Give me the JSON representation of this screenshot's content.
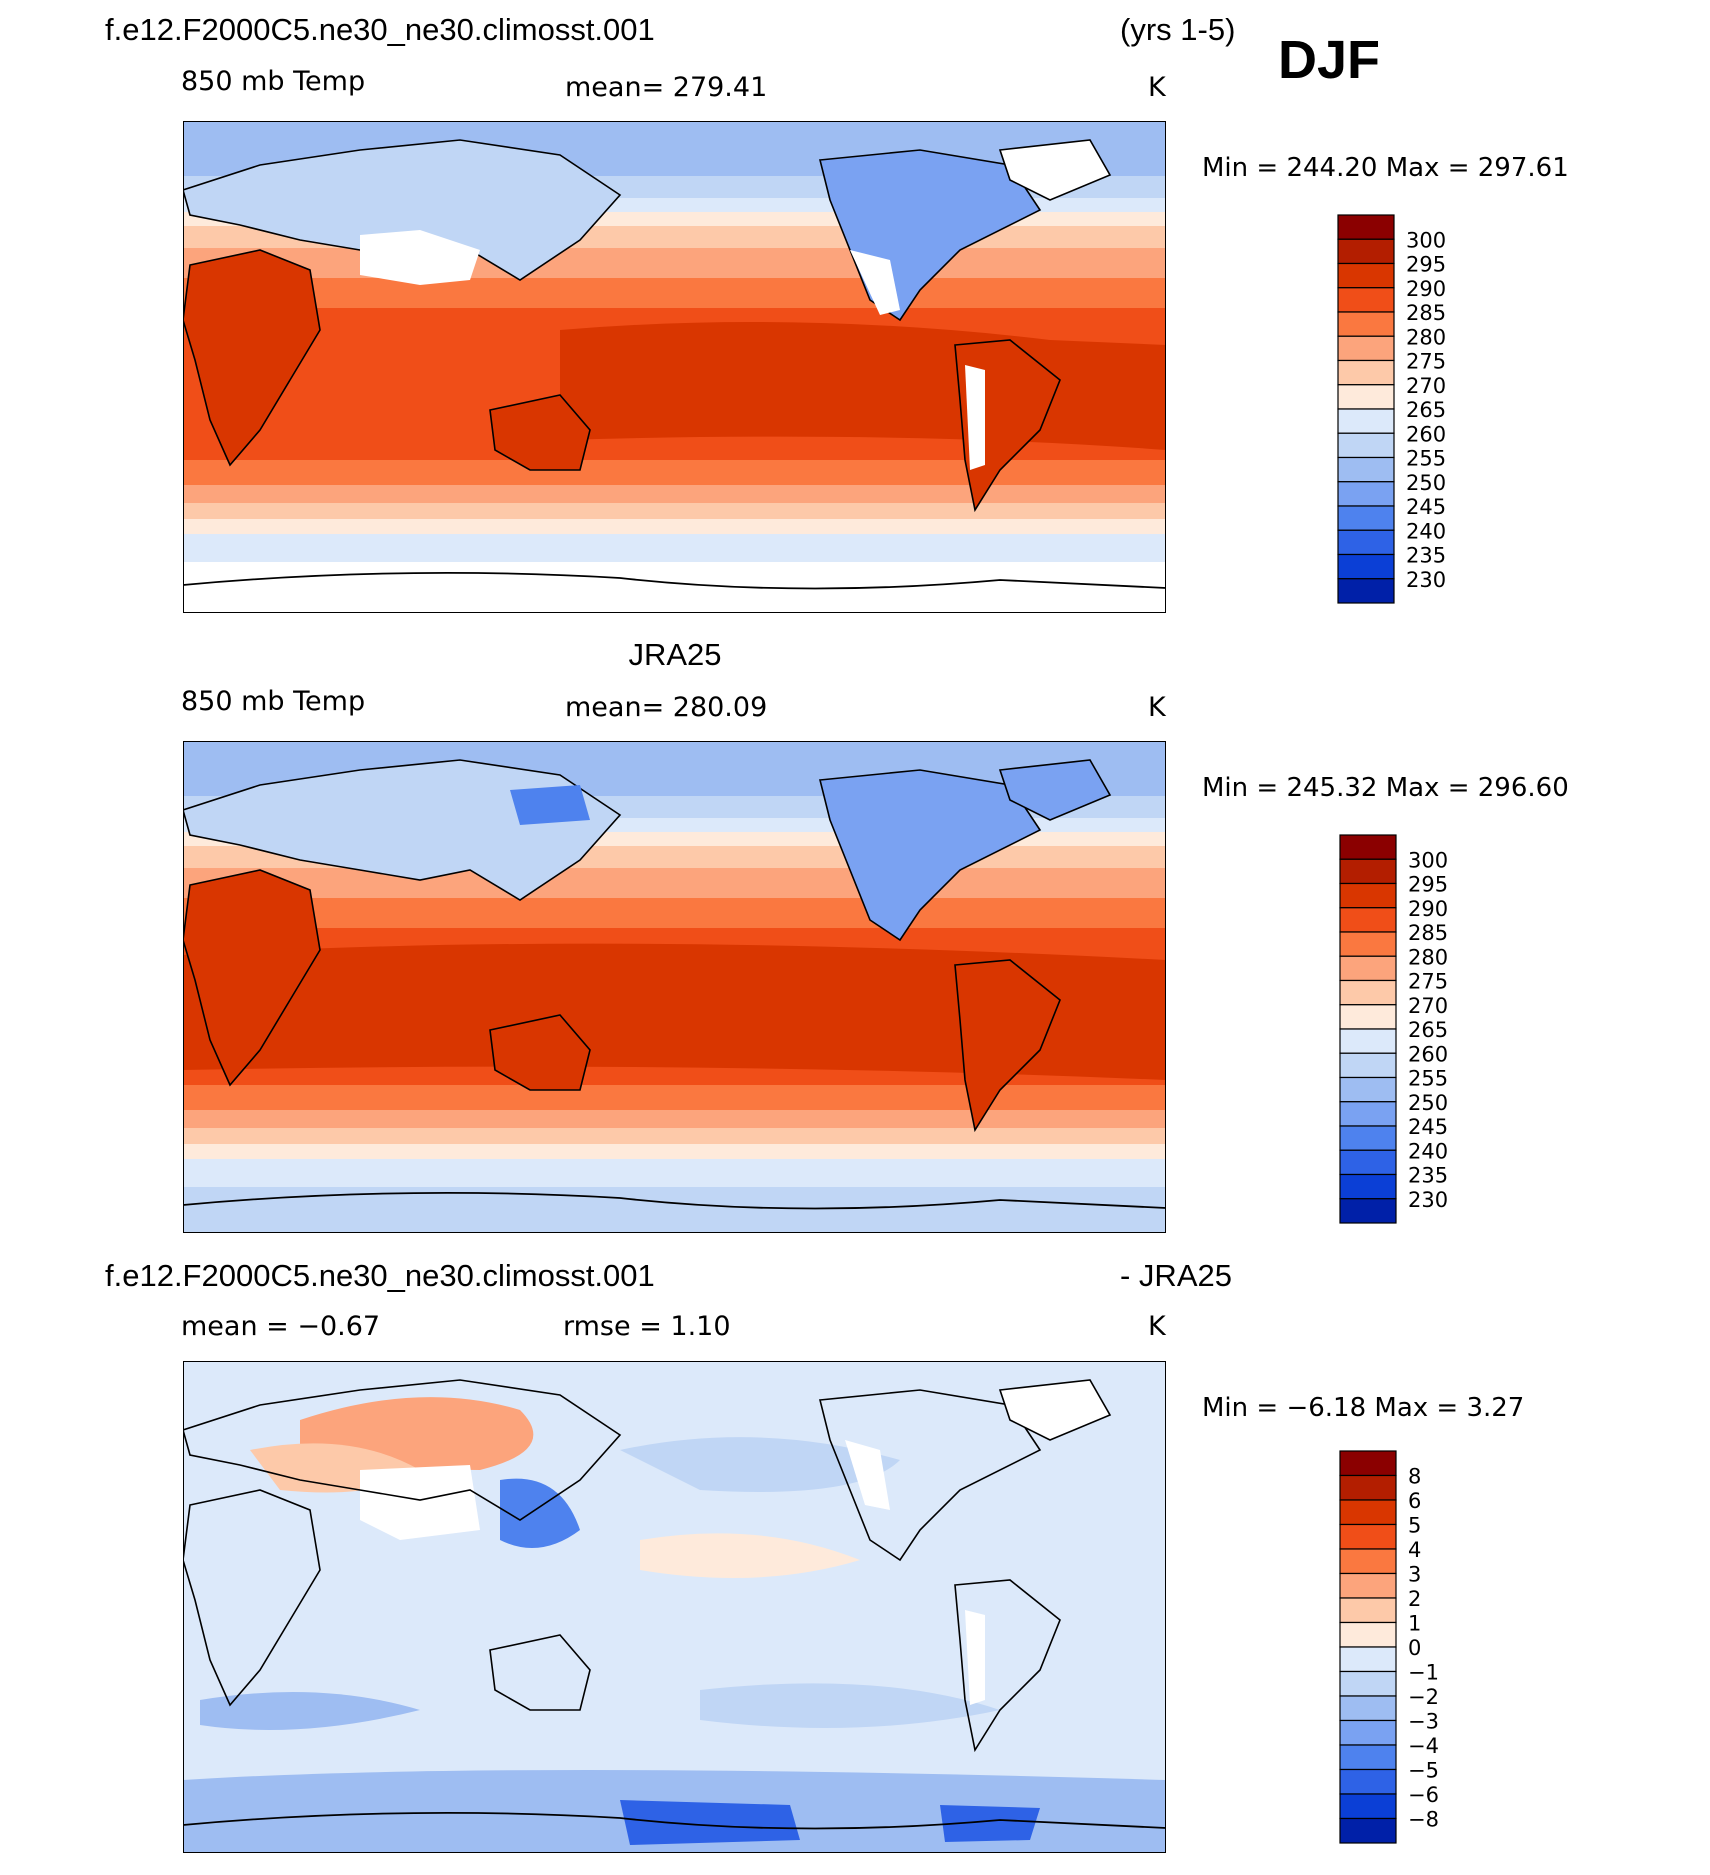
{
  "figure": {
    "season": "DJF",
    "case_name": "f.e12.F2000C5.ne30_ne30.climosst.001",
    "years": "(yrs 1-5)",
    "obs_name": "JRA25",
    "diff_suffix": "- JRA25"
  },
  "panels": [
    {
      "id": "model",
      "field_label": "850 mb Temp",
      "stat_text": "mean=  279.41",
      "units": "K",
      "minmax_text": "Min  =  244.20  Max  =  297.61",
      "colorbar": {
        "labels": [
          "300",
          "295",
          "290",
          "285",
          "280",
          "275",
          "270",
          "265",
          "260",
          "255",
          "250",
          "245",
          "240",
          "235",
          "230"
        ],
        "colors": [
          "#8b0000",
          "#b31e00",
          "#d93600",
          "#f04e18",
          "#fa7840",
          "#fca47c",
          "#fdc9a9",
          "#feeadb",
          "#dce9fa",
          "#c0d6f5",
          "#9ebdf2",
          "#7aa2f2",
          "#4e82ee",
          "#2e62e6",
          "#0b3fd6",
          "#0020a8"
        ]
      }
    },
    {
      "id": "obs",
      "field_label": "850 mb Temp",
      "stat_text": "mean=  280.09",
      "units": "K",
      "minmax_text": "Min  =  245.32  Max  =  296.60",
      "colorbar": {
        "labels": [
          "300",
          "295",
          "290",
          "285",
          "280",
          "275",
          "270",
          "265",
          "260",
          "255",
          "250",
          "245",
          "240",
          "235",
          "230"
        ],
        "colors": [
          "#8b0000",
          "#b31e00",
          "#d93600",
          "#f04e18",
          "#fa7840",
          "#fca47c",
          "#fdc9a9",
          "#feeadb",
          "#dce9fa",
          "#c0d6f5",
          "#9ebdf2",
          "#7aa2f2",
          "#4e82ee",
          "#2e62e6",
          "#0b3fd6",
          "#0020a8"
        ]
      }
    },
    {
      "id": "diff",
      "field_label": "mean  =   −0.67",
      "stat_text": "rmse  =     1.10",
      "units": "K",
      "minmax_text": "Min  =    −6.18  Max  =      3.27",
      "colorbar": {
        "labels": [
          "8",
          "6",
          "5",
          "4",
          "3",
          "2",
          "1",
          "0",
          "−1",
          "−2",
          "−3",
          "−4",
          "−5",
          "−6",
          "−8"
        ],
        "colors": [
          "#8b0000",
          "#b31e00",
          "#d93600",
          "#f04e18",
          "#fa7840",
          "#fca47c",
          "#fdc9a9",
          "#feeadb",
          "#dce9fa",
          "#c0d6f5",
          "#9ebdf2",
          "#7aa2f2",
          "#4e82ee",
          "#2e62e6",
          "#0b3fd6",
          "#0020a8"
        ]
      }
    }
  ]
}
